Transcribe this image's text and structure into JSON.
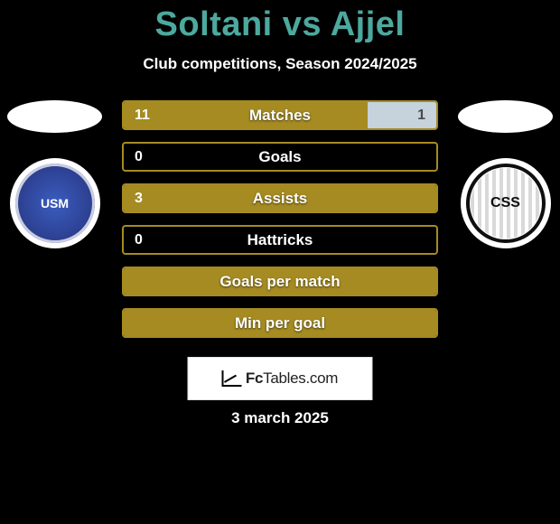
{
  "title": "Soltani vs Ajjel",
  "subtitle": "Club competitions, Season 2024/2025",
  "colors": {
    "title_color": "#4ca99e",
    "bar_border": "#a58b22",
    "fill_left": "#a58b22",
    "fill_right": "#c6d2dc",
    "background": "#000000"
  },
  "player_left": {
    "club_abbrev": "USM",
    "club_bg_inner": "#2c3e8e"
  },
  "player_right": {
    "club_abbrev": "CSS",
    "club_bg_inner": "#ffffff"
  },
  "stats": [
    {
      "label": "Matches",
      "left_value": "11",
      "right_value": "1",
      "left_fill_pct": 78,
      "right_fill_pct": 22,
      "show_values": true
    },
    {
      "label": "Goals",
      "left_value": "0",
      "right_value": "",
      "left_fill_pct": 0,
      "right_fill_pct": 0,
      "show_values": true
    },
    {
      "label": "Assists",
      "left_value": "3",
      "right_value": "",
      "left_fill_pct": 100,
      "right_fill_pct": 0,
      "show_values": true
    },
    {
      "label": "Hattricks",
      "left_value": "0",
      "right_value": "",
      "left_fill_pct": 0,
      "right_fill_pct": 0,
      "show_values": true
    },
    {
      "label": "Goals per match",
      "left_value": "",
      "right_value": "",
      "left_fill_pct": 100,
      "right_fill_pct": 0,
      "show_values": false
    },
    {
      "label": "Min per goal",
      "left_value": "",
      "right_value": "",
      "left_fill_pct": 100,
      "right_fill_pct": 0,
      "show_values": false
    }
  ],
  "watermark": {
    "brand_strong": "Fc",
    "brand_light": "Tables.com"
  },
  "footer_date": "3 march 2025"
}
